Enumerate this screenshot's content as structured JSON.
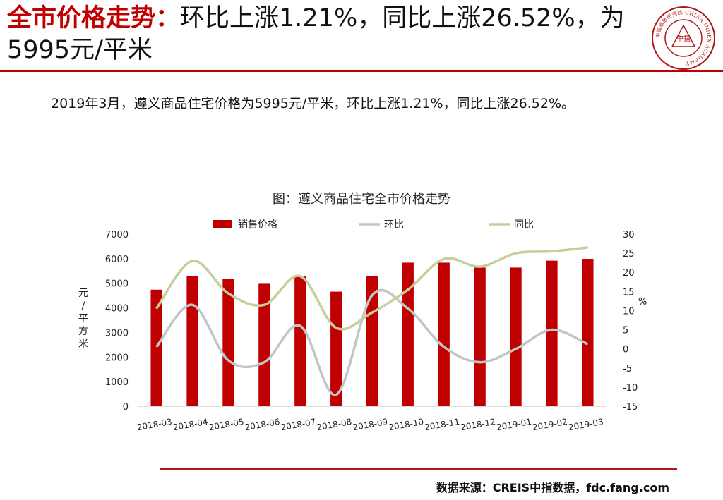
{
  "header": {
    "title_accent": "全市价格走势：",
    "title_rest": "环比上涨1.21%，同比上涨26.52%，为5995元/平米"
  },
  "logo": {
    "text": "中指",
    "ring_text": "中国指数研究院 CHINA INDEX ACADEMY"
  },
  "summary": "2019年3月，遵义商品住宅价格为5995元/平米，环比上涨1.21%，同比上涨26.52%。",
  "chart_data": {
    "type": "bar+line",
    "title": "图：遵义商品住宅全市价格走势",
    "categories": [
      "2018-03",
      "2018-04",
      "2018-05",
      "2018-06",
      "2018-07",
      "2018-08",
      "2018-09",
      "2018-10",
      "2018-11",
      "2018-12",
      "2019-01",
      "2019-02",
      "2019-03"
    ],
    "series": [
      {
        "name": "销售价格",
        "type": "bar",
        "axis": "left",
        "color": "#c00000",
        "values": [
          4740,
          5290,
          5190,
          4980,
          5280,
          4660,
          5290,
          5840,
          5840,
          5640,
          5640,
          5920,
          5995
        ]
      },
      {
        "name": "环比",
        "type": "line",
        "axis": "right",
        "color": "#bfc6c6",
        "values": [
          0.5,
          11.5,
          -3.0,
          -3.5,
          6.0,
          -12.0,
          14.0,
          10.5,
          0.5,
          -3.5,
          0.0,
          5.0,
          1.21
        ]
      },
      {
        "name": "同比",
        "type": "line",
        "axis": "right",
        "color": "#c6cf9c",
        "values": [
          10.5,
          23.0,
          14.5,
          11.5,
          19.0,
          5.5,
          9.5,
          15.5,
          23.5,
          21.5,
          25.0,
          25.5,
          26.52
        ]
      }
    ],
    "ylabel_left": "元/平方米",
    "ylabel_right": "%",
    "ylim_left": [
      0,
      7000
    ],
    "yticks_left": [
      "7000",
      "6000",
      "5000",
      "4000",
      "3000",
      "2000",
      "1000",
      "0"
    ],
    "ylim_right": [
      -15,
      30
    ],
    "yticks_right": [
      "30",
      "25",
      "20",
      "15",
      "10",
      "5",
      "0",
      "-5",
      "-10",
      "-15"
    ],
    "legend_position": "top",
    "grid": false
  },
  "footer": {
    "source": "数据来源：CREIS中指数据，fdc.fang.com"
  }
}
